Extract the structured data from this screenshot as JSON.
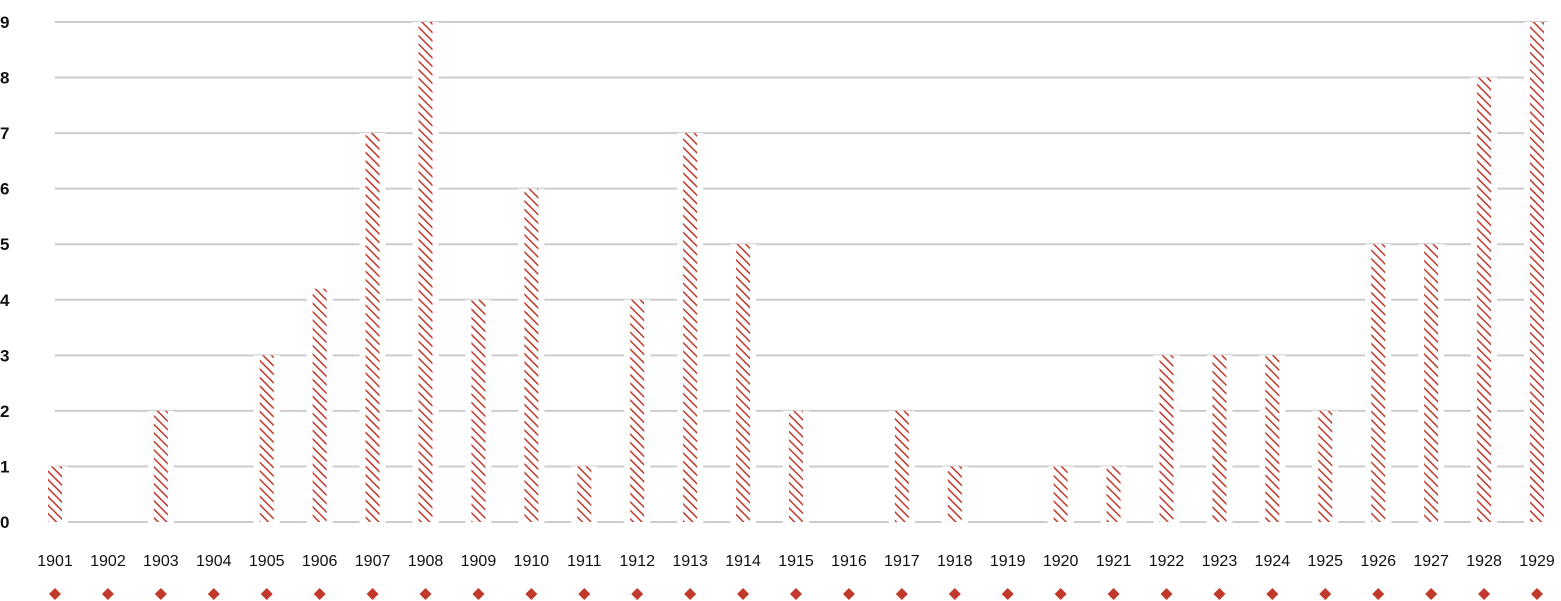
{
  "chart_data": {
    "type": "bar",
    "title": "",
    "xlabel": "",
    "ylabel": "",
    "ylim": [
      0,
      9
    ],
    "yticks": [
      0,
      1,
      2,
      3,
      4,
      5,
      6,
      7,
      8,
      9
    ],
    "grid": true,
    "legend": "none",
    "categories": [
      "1901",
      "1902",
      "1903",
      "1904",
      "1905",
      "1906",
      "1907",
      "1908",
      "1909",
      "1910",
      "1911",
      "1912",
      "1913",
      "1914",
      "1915",
      "1916",
      "1917",
      "1918",
      "1919",
      "1920",
      "1921",
      "1922",
      "1923",
      "1924",
      "1925",
      "1926",
      "1927",
      "1928",
      "1929"
    ],
    "values": [
      1,
      0,
      2,
      0,
      3,
      4.2,
      7,
      9,
      4,
      6,
      1,
      4,
      7,
      5,
      2,
      0,
      2,
      1,
      0,
      1,
      1,
      3,
      3,
      3,
      2,
      5,
      5,
      8,
      9
    ],
    "bar_fill": "hatched",
    "bar_color": "#c0392b",
    "grid_color": "#cccccc",
    "marker_shape": "diamond",
    "marker_color": "#c0392b"
  }
}
